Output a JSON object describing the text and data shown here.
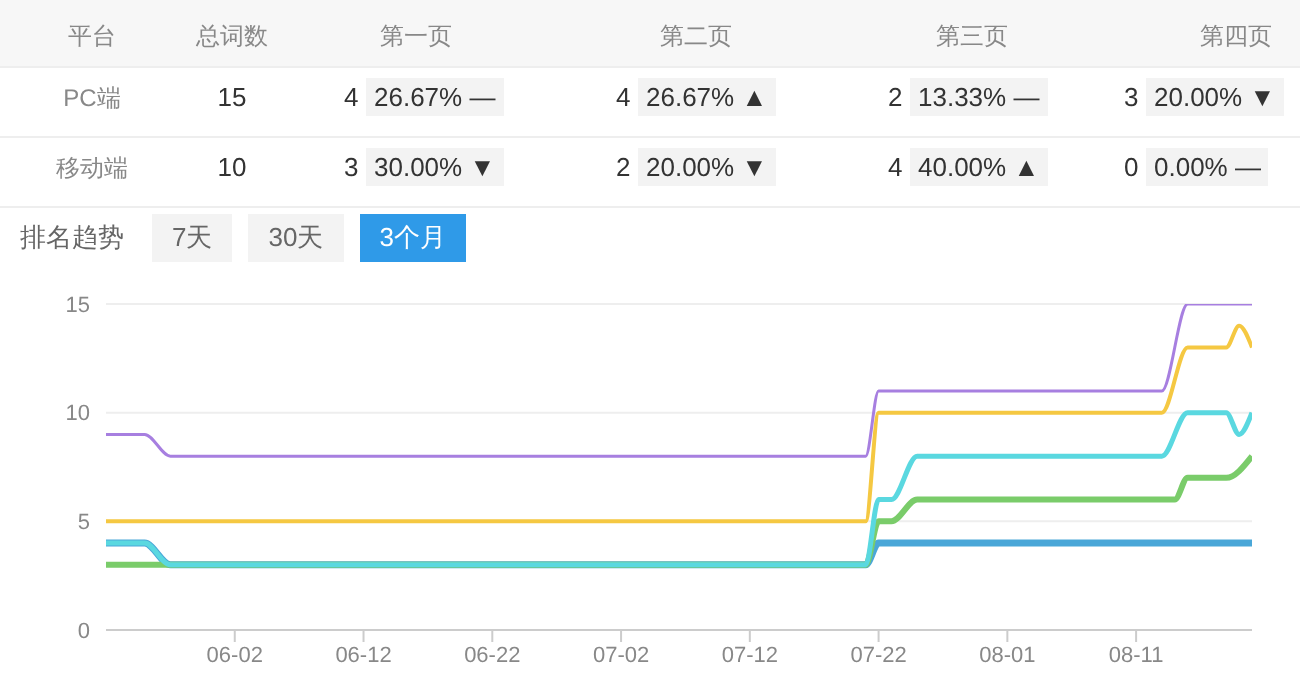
{
  "chart_data": [
    {
      "type": "other",
      "annotations": [
        "平台",
        "总词数",
        "第一页",
        "第二页",
        "第三页",
        "第四页",
        "PC端",
        "15",
        "4",
        "26.67% —",
        "4",
        "26.67% ▲",
        "2",
        "13.33% —",
        "3",
        "20.00% ▼",
        "移动端",
        "10",
        "3",
        "30.00% ▼",
        "2",
        "20.00% ▼",
        "4",
        "40.00% ▲",
        "0",
        "0.00% —"
      ]
    },
    {
      "type": "line",
      "title": "排名趋势",
      "annotations": [
        "7天",
        "30天",
        "3个月"
      ],
      "ylim": [
        0,
        15
      ],
      "yticks": [
        0,
        5,
        10,
        15
      ],
      "grid": "y",
      "marker": "none",
      "line_style": "solid",
      "xlim": [
        "--05-23",
        "--08-20"
      ],
      "xticks": [
        {
          "value": "--06-02",
          "label": "06-02"
        },
        {
          "value": "--06-12",
          "label": "06-12"
        },
        {
          "value": "--06-22",
          "label": "06-22"
        },
        {
          "value": "--07-02",
          "label": "07-02"
        },
        {
          "value": "--07-12",
          "label": "07-12"
        },
        {
          "value": "--07-22",
          "label": "07-22"
        },
        {
          "value": "--08-01",
          "label": "08-01"
        },
        {
          "value": "--08-11",
          "label": "08-11"
        }
      ],
      "series": [
        {
          "color": "#4aa7d8",
          "x": [
            "--05-23",
            "--05-26",
            "--05-28",
            "--07-21",
            "--07-22",
            "--08-20"
          ],
          "values": [
            4,
            4,
            3,
            3,
            4,
            4
          ]
        },
        {
          "color": "#7acc6a",
          "x": [
            "--05-23",
            "--07-21",
            "--07-22",
            "--07-23",
            "--07-25",
            "--08-14",
            "--08-15",
            "--08-18",
            "--08-20"
          ],
          "values": [
            3,
            3,
            5,
            5,
            6,
            6,
            7,
            7,
            8
          ]
        },
        {
          "color": "#5ad8e0",
          "x": [
            "--05-23",
            "--05-26",
            "--05-28",
            "--07-21",
            "--07-22",
            "--07-23",
            "--07-25",
            "--08-13",
            "--08-15",
            "--08-18",
            "--08-19",
            "--08-20"
          ],
          "values": [
            4,
            4,
            3,
            3,
            6,
            6,
            8,
            8,
            10,
            10,
            9,
            10
          ]
        },
        {
          "color": "#f5c842",
          "x": [
            "--05-23",
            "--07-21",
            "--07-22",
            "--08-13",
            "--08-15",
            "--08-18",
            "--08-19",
            "--08-20"
          ],
          "values": [
            5,
            5,
            10,
            10,
            13,
            13,
            14,
            13
          ]
        },
        {
          "color": "#a77fe0",
          "x": [
            "--05-23",
            "--05-26",
            "--05-28",
            "--07-21",
            "--07-22",
            "--08-13",
            "--08-15",
            "--08-20"
          ],
          "values": [
            9,
            9,
            8,
            8,
            11,
            11,
            15,
            15
          ]
        }
      ]
    }
  ]
}
